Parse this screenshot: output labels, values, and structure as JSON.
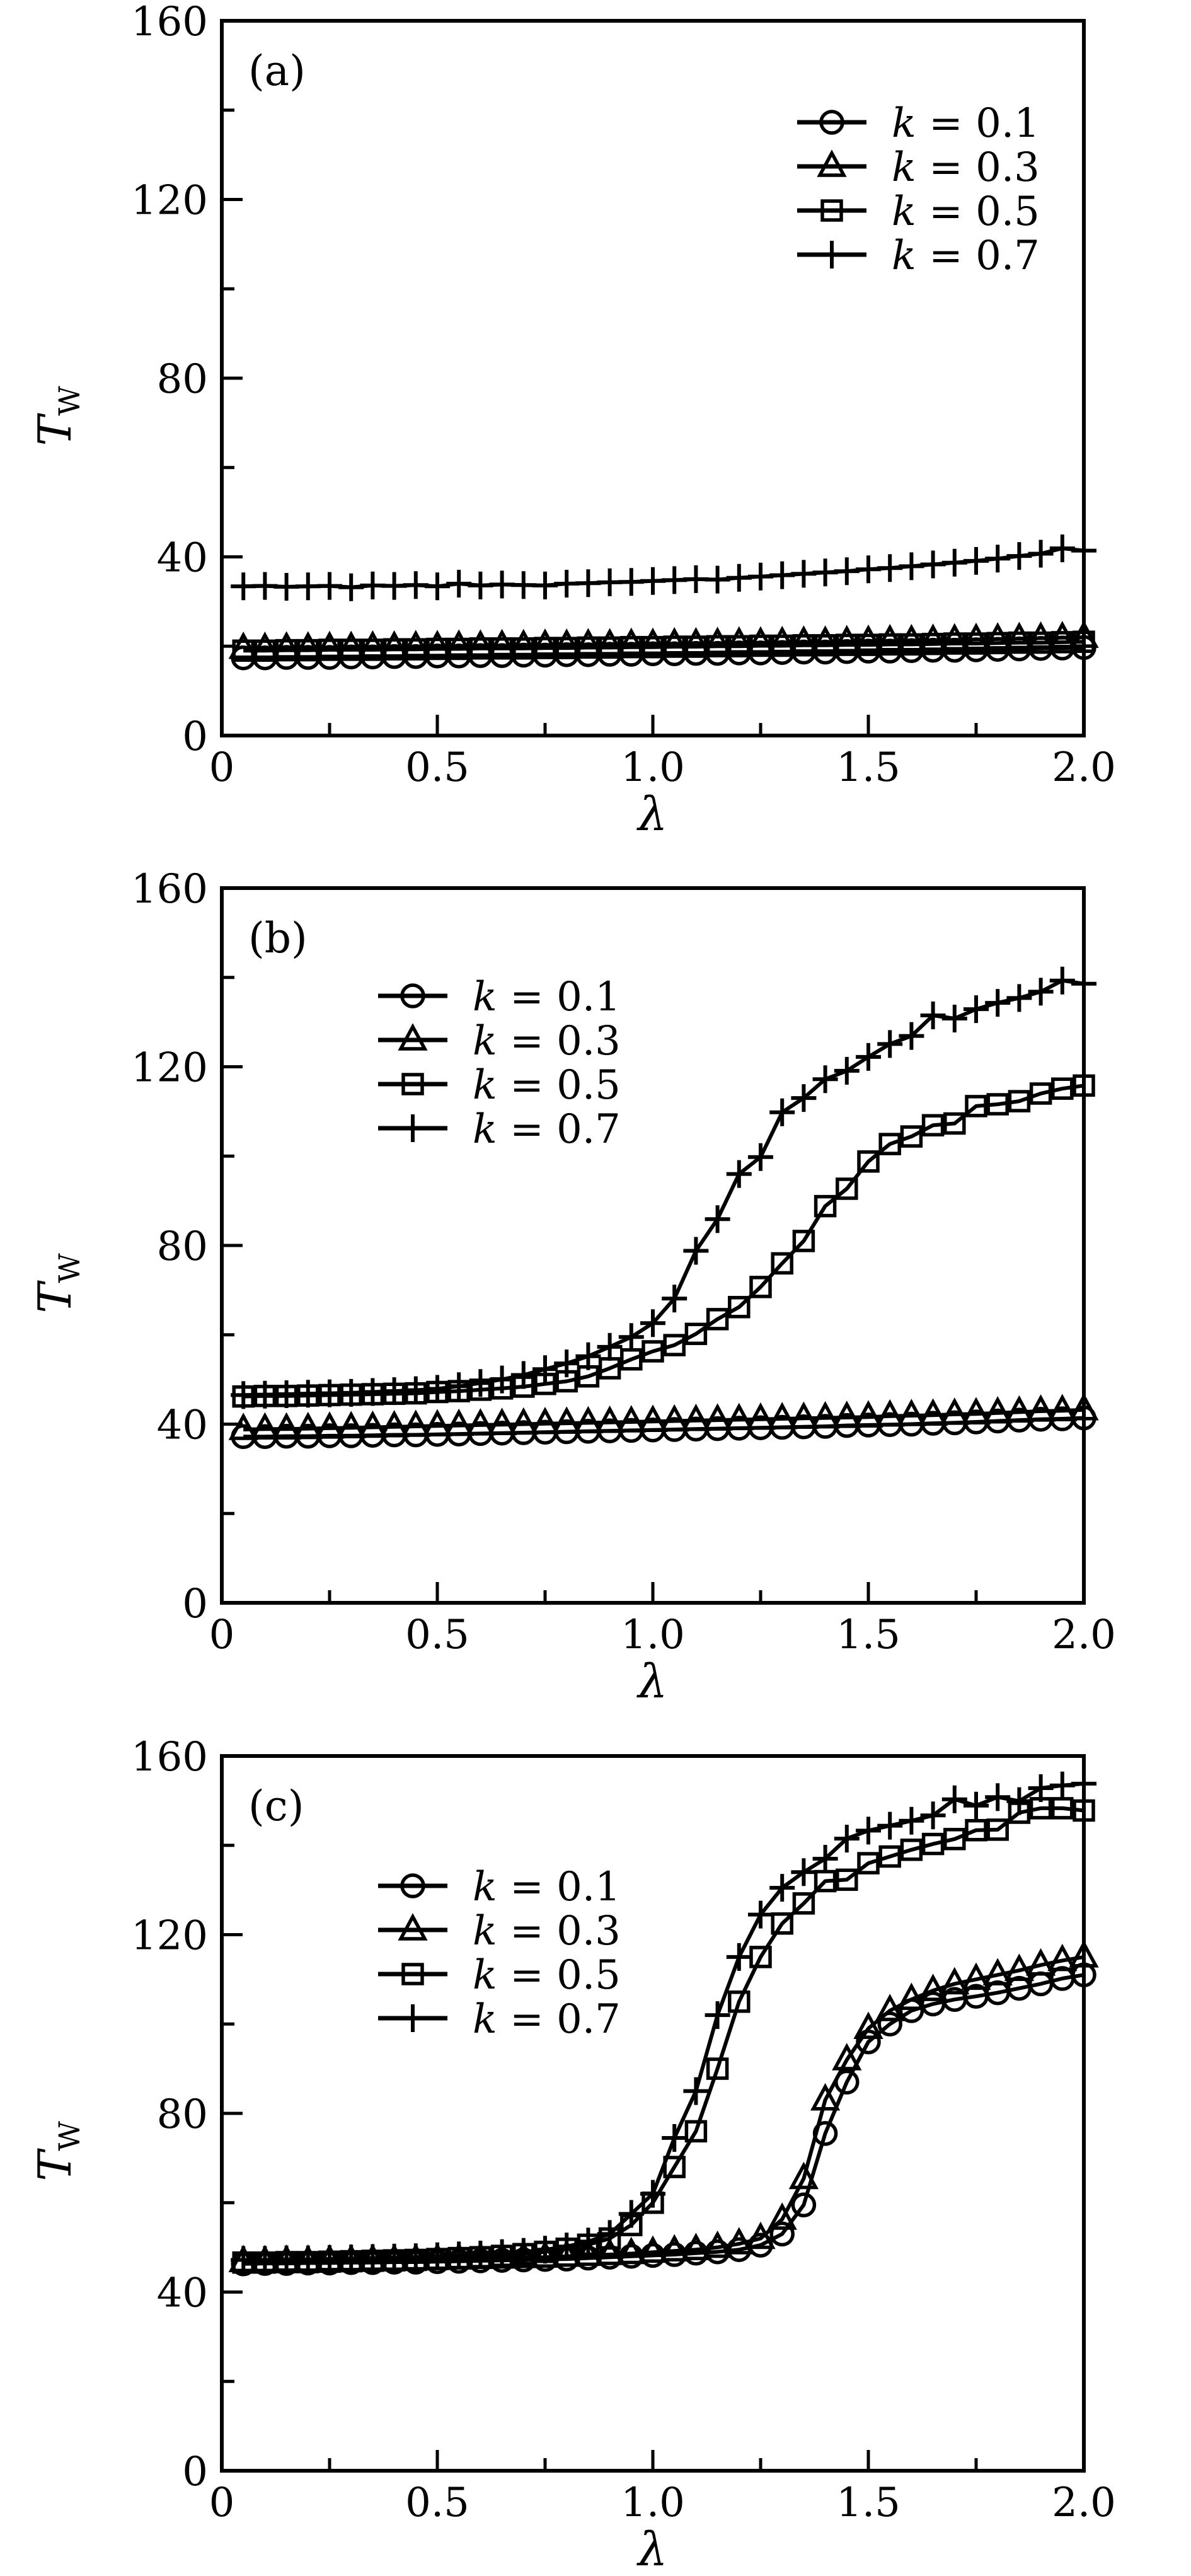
{
  "figure": {
    "background": "#ffffff",
    "ink": "#000000",
    "x_axis_label": "λ",
    "y_axis_label": {
      "main": "T",
      "sub": "W"
    }
  },
  "chart_data": [
    {
      "type": "line",
      "panel_label": "(a)",
      "xlabel": "λ",
      "ylabel": "T_W",
      "xlim": [
        0,
        2.0
      ],
      "ylim": [
        0,
        160
      ],
      "x_tick_labels": [
        "0",
        "0.5",
        "1.0",
        "1.5",
        "2.0"
      ],
      "x_major_ticks": [
        0,
        0.5,
        1.0,
        1.5,
        2.0
      ],
      "x_minor_ticks": [
        0.25,
        0.75,
        1.25,
        1.75
      ],
      "y_tick_labels": [
        "0",
        "40",
        "80",
        "120",
        "160"
      ],
      "y_major_ticks": [
        0,
        40,
        80,
        120,
        160
      ],
      "y_minor_ticks": [
        20,
        60,
        100,
        140
      ],
      "grid": false,
      "legend_position": "upper-right",
      "x": [
        0.05,
        0.1,
        0.15,
        0.2,
        0.25,
        0.3,
        0.35,
        0.4,
        0.45,
        0.5,
        0.55,
        0.6,
        0.65,
        0.7,
        0.75,
        0.8,
        0.85,
        0.9,
        0.95,
        1.0,
        1.05,
        1.1,
        1.15,
        1.2,
        1.25,
        1.3,
        1.35,
        1.4,
        1.45,
        1.5,
        1.55,
        1.6,
        1.65,
        1.7,
        1.75,
        1.8,
        1.85,
        1.9,
        1.95,
        2.0
      ],
      "series": [
        {
          "label": "k = 0.1",
          "marker": "circle",
          "values": [
            17.4,
            17.4,
            17.5,
            17.5,
            17.5,
            17.6,
            17.6,
            17.7,
            17.7,
            17.8,
            17.8,
            17.9,
            17.9,
            18.0,
            18.0,
            18.1,
            18.1,
            18.2,
            18.2,
            18.3,
            18.3,
            18.4,
            18.4,
            18.5,
            18.5,
            18.6,
            18.7,
            18.7,
            18.8,
            18.9,
            18.9,
            19.0,
            19.1,
            19.1,
            19.2,
            19.3,
            19.4,
            19.5,
            19.6,
            19.7
          ]
        },
        {
          "label": "k = 0.3",
          "marker": "triangle",
          "values": [
            19.5,
            19.5,
            19.6,
            19.6,
            19.7,
            19.7,
            19.8,
            19.8,
            19.9,
            19.9,
            20.0,
            20.0,
            20.1,
            20.1,
            20.2,
            20.2,
            20.3,
            20.3,
            20.4,
            20.4,
            20.5,
            20.5,
            20.6,
            20.7,
            20.7,
            20.8,
            20.9,
            20.9,
            21.0,
            21.1,
            21.2,
            21.2,
            21.3,
            21.4,
            21.5,
            21.6,
            21.7,
            21.8,
            21.9,
            22.0
          ]
        },
        {
          "label": "k = 0.5",
          "marker": "square",
          "values": [
            19.0,
            19.0,
            19.1,
            19.1,
            19.2,
            19.2,
            19.2,
            19.3,
            19.3,
            19.4,
            19.4,
            19.5,
            19.5,
            19.5,
            19.6,
            19.6,
            19.7,
            19.7,
            19.8,
            19.8,
            19.9,
            19.9,
            20.0,
            20.0,
            20.1,
            20.1,
            20.2,
            20.2,
            20.3,
            20.3,
            20.4,
            20.4,
            20.5,
            20.6,
            20.6,
            20.7,
            20.8,
            20.8,
            20.9,
            21.0
          ]
        },
        {
          "label": "k = 0.7",
          "marker": "plus",
          "values": [
            33.4,
            33.5,
            33.3,
            33.4,
            33.5,
            33.2,
            33.6,
            33.5,
            33.7,
            33.4,
            34.0,
            33.6,
            33.8,
            33.7,
            33.6,
            34.0,
            34.1,
            34.3,
            34.4,
            34.6,
            34.8,
            35.0,
            34.9,
            35.3,
            35.6,
            35.9,
            36.2,
            36.5,
            36.8,
            37.2,
            37.5,
            37.9,
            38.3,
            38.7,
            39.1,
            39.6,
            40.2,
            40.7,
            41.9,
            41.4
          ]
        }
      ]
    },
    {
      "type": "line",
      "panel_label": "(b)",
      "xlabel": "λ",
      "ylabel": "T_W",
      "xlim": [
        0,
        2.0
      ],
      "ylim": [
        0,
        160
      ],
      "x_tick_labels": [
        "0",
        "0.5",
        "1.0",
        "1.5",
        "2.0"
      ],
      "x_major_ticks": [
        0,
        0.5,
        1.0,
        1.5,
        2.0
      ],
      "x_minor_ticks": [
        0.25,
        0.75,
        1.25,
        1.75
      ],
      "y_tick_labels": [
        "0",
        "40",
        "80",
        "120",
        "160"
      ],
      "y_major_ticks": [
        0,
        40,
        80,
        120,
        160
      ],
      "y_minor_ticks": [
        20,
        60,
        100,
        140
      ],
      "grid": false,
      "legend_position": "upper-left",
      "x": [
        0.05,
        0.1,
        0.15,
        0.2,
        0.25,
        0.3,
        0.35,
        0.4,
        0.45,
        0.5,
        0.55,
        0.6,
        0.65,
        0.7,
        0.75,
        0.8,
        0.85,
        0.9,
        0.95,
        1.0,
        1.05,
        1.1,
        1.15,
        1.2,
        1.25,
        1.3,
        1.35,
        1.4,
        1.45,
        1.5,
        1.55,
        1.6,
        1.65,
        1.7,
        1.75,
        1.8,
        1.85,
        1.9,
        1.95,
        2.0
      ],
      "series": [
        {
          "label": "k = 0.1",
          "marker": "circle",
          "values": [
            37.2,
            37.2,
            37.3,
            37.3,
            37.4,
            37.4,
            37.5,
            37.6,
            37.6,
            37.7,
            37.8,
            37.9,
            38.0,
            38.1,
            38.2,
            38.3,
            38.4,
            38.5,
            38.6,
            38.7,
            38.8,
            38.9,
            39.0,
            39.1,
            39.2,
            39.3,
            39.4,
            39.5,
            39.7,
            39.8,
            39.9,
            40.0,
            40.2,
            40.3,
            40.5,
            40.7,
            40.9,
            41.1,
            41.2,
            41.4
          ]
        },
        {
          "label": "k = 0.3",
          "marker": "triangle",
          "values": [
            38.8,
            38.9,
            38.9,
            39.0,
            39.1,
            39.2,
            39.3,
            39.4,
            39.5,
            39.6,
            39.7,
            39.8,
            39.9,
            40.0,
            40.1,
            40.2,
            40.3,
            40.4,
            40.5,
            40.6,
            40.7,
            40.8,
            40.9,
            41.0,
            41.1,
            41.2,
            41.3,
            41.4,
            41.5,
            41.6,
            41.8,
            41.9,
            42.0,
            42.2,
            42.3,
            42.5,
            42.7,
            42.9,
            43.0,
            43.2
          ]
        },
        {
          "label": "k = 0.5",
          "marker": "square",
          "values": [
            46.2,
            46.3,
            46.3,
            46.4,
            46.5,
            46.6,
            46.7,
            46.8,
            46.9,
            47.2,
            47.4,
            47.7,
            48.0,
            48.4,
            49.0,
            49.6,
            50.7,
            52.5,
            54.5,
            56.3,
            57.7,
            60.2,
            63.5,
            66.2,
            70.7,
            76.0,
            81.0,
            88.8,
            92.7,
            98.8,
            102.7,
            104.4,
            106.9,
            107.3,
            111.2,
            111.6,
            112.3,
            114.0,
            115.1,
            115.8
          ]
        },
        {
          "label": "k = 0.7",
          "marker": "plus",
          "values": [
            46.5,
            46.6,
            46.7,
            46.8,
            46.9,
            47.0,
            47.2,
            47.4,
            47.6,
            47.9,
            48.5,
            49.2,
            50.0,
            51.0,
            52.3,
            53.6,
            55.2,
            57.3,
            59.5,
            62.6,
            68.1,
            78.8,
            85.9,
            96.0,
            99.8,
            109.8,
            113.0,
            117.2,
            119.1,
            122.2,
            125.1,
            126.9,
            131.5,
            130.8,
            132.9,
            134.3,
            135.4,
            136.8,
            139.3,
            138.6
          ]
        }
      ]
    },
    {
      "type": "line",
      "panel_label": "(c)",
      "xlabel": "λ",
      "ylabel": "T_W",
      "xlim": [
        0,
        2.0
      ],
      "ylim": [
        0,
        160
      ],
      "x_tick_labels": [
        "0",
        "0.5",
        "1.0",
        "1.5",
        "2.0"
      ],
      "x_major_ticks": [
        0,
        0.5,
        1.0,
        1.5,
        2.0
      ],
      "x_minor_ticks": [
        0.25,
        0.75,
        1.25,
        1.75
      ],
      "y_tick_labels": [
        "0",
        "40",
        "80",
        "120",
        "160"
      ],
      "y_major_ticks": [
        0,
        40,
        80,
        120,
        160
      ],
      "y_minor_ticks": [
        20,
        60,
        100,
        140
      ],
      "grid": false,
      "legend_position": "upper-left",
      "x": [
        0.05,
        0.1,
        0.15,
        0.2,
        0.25,
        0.3,
        0.35,
        0.4,
        0.45,
        0.5,
        0.55,
        0.6,
        0.65,
        0.7,
        0.75,
        0.8,
        0.85,
        0.9,
        0.95,
        1.0,
        1.05,
        1.1,
        1.15,
        1.2,
        1.25,
        1.3,
        1.35,
        1.4,
        1.45,
        1.5,
        1.55,
        1.6,
        1.65,
        1.7,
        1.75,
        1.8,
        1.85,
        1.9,
        1.95,
        2.0
      ],
      "series": [
        {
          "label": "k = 0.1",
          "marker": "circle",
          "values": [
            46.3,
            46.4,
            46.4,
            46.5,
            46.5,
            46.6,
            46.6,
            46.7,
            46.7,
            46.8,
            46.9,
            47.0,
            47.1,
            47.2,
            47.3,
            47.4,
            47.6,
            47.8,
            48.0,
            48.2,
            48.4,
            48.7,
            49.0,
            49.5,
            50.5,
            53.0,
            59.5,
            75.5,
            87.0,
            96.0,
            100.0,
            103.0,
            104.5,
            105.5,
            106.2,
            107.0,
            108.0,
            109.0,
            110.2,
            111.0
          ]
        },
        {
          "label": "k = 0.3",
          "marker": "triangle",
          "values": [
            46.8,
            46.8,
            46.9,
            46.9,
            47.0,
            47.0,
            47.1,
            47.1,
            47.2,
            47.3,
            47.4,
            47.5,
            47.6,
            47.7,
            47.8,
            48.0,
            48.2,
            48.4,
            48.6,
            48.9,
            49.2,
            49.5,
            50.0,
            50.8,
            52.0,
            56.3,
            65.4,
            83.0,
            92.0,
            99.0,
            103.0,
            105.5,
            107.5,
            109.0,
            110.0,
            111.0,
            112.0,
            113.2,
            114.2,
            115.0
          ]
        },
        {
          "label": "k = 0.5",
          "marker": "square",
          "values": [
            46.6,
            46.6,
            46.7,
            46.7,
            46.8,
            46.9,
            47.0,
            47.1,
            47.2,
            47.4,
            47.6,
            47.8,
            48.1,
            48.5,
            49.0,
            49.7,
            50.6,
            52.0,
            55.0,
            60.0,
            68.0,
            76.0,
            90.0,
            105.0,
            115.0,
            122.5,
            127.0,
            132.0,
            132.3,
            136.0,
            137.5,
            139.0,
            140.3,
            141.4,
            143.4,
            143.5,
            147.3,
            148.3,
            148.3,
            147.8
          ]
        },
        {
          "label": "k = 0.7",
          "marker": "plus",
          "values": [
            47.2,
            47.2,
            47.3,
            47.3,
            47.4,
            47.5,
            47.6,
            47.7,
            47.8,
            48.0,
            48.2,
            48.4,
            48.7,
            49.0,
            49.5,
            50.2,
            51.3,
            53.0,
            57.5,
            62.0,
            74.5,
            85.0,
            102.0,
            115.0,
            124.5,
            130.5,
            134.0,
            137.0,
            141.5,
            143.3,
            144.4,
            145.5,
            146.7,
            150.3,
            148.9,
            150.8,
            149.9,
            152.8,
            153.4,
            153.8
          ]
        }
      ]
    }
  ]
}
